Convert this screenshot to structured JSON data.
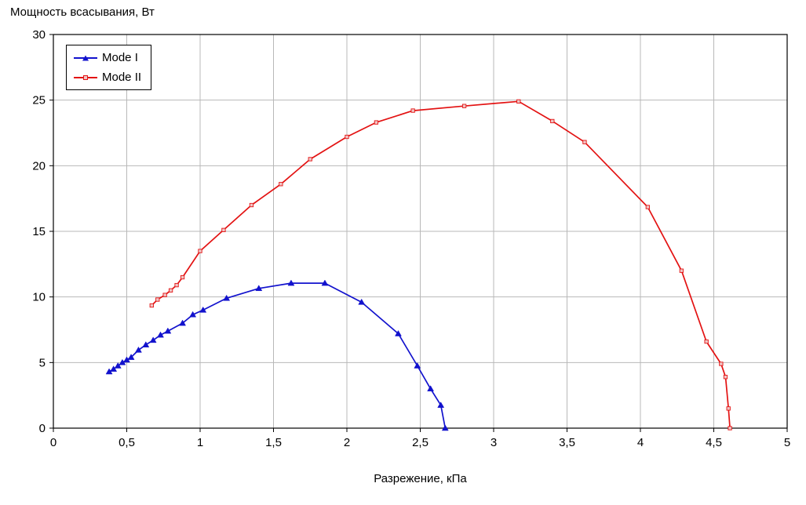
{
  "title": "Мощность всасывания, Вт",
  "chart_data": {
    "type": "line",
    "title": "Мощность всасывания, Вт",
    "xlabel": "Разрежение, кПа",
    "ylabel": "Мощность всасывания, Вт",
    "xlim": [
      0,
      5
    ],
    "ylim": [
      0,
      30
    ],
    "x_ticks": [
      0,
      0.5,
      1,
      1.5,
      2,
      2.5,
      3,
      3.5,
      4,
      4.5,
      5
    ],
    "x_tick_labels": [
      "0",
      "0,5",
      "1",
      "1,5",
      "2",
      "2,5",
      "3",
      "3,5",
      "4",
      "4,5",
      "5"
    ],
    "y_ticks": [
      0,
      5,
      10,
      15,
      20,
      25,
      30
    ],
    "y_tick_labels": [
      "0",
      "5",
      "10",
      "15",
      "20",
      "25",
      "30"
    ],
    "grid": true,
    "legend_position": "top-left",
    "colors": {
      "grid": "#b8b8b8",
      "axis": "#000000",
      "background": "#ffffff"
    },
    "series": [
      {
        "name": "Mode I",
        "color": "#1212cd",
        "marker": "triangle",
        "marker_fill": "#1212cd",
        "points": [
          [
            0.38,
            4.3
          ],
          [
            0.41,
            4.5
          ],
          [
            0.44,
            4.75
          ],
          [
            0.47,
            5.0
          ],
          [
            0.5,
            5.2
          ],
          [
            0.53,
            5.4
          ],
          [
            0.58,
            5.95
          ],
          [
            0.63,
            6.35
          ],
          [
            0.68,
            6.7
          ],
          [
            0.73,
            7.1
          ],
          [
            0.78,
            7.4
          ],
          [
            0.88,
            8.0
          ],
          [
            0.95,
            8.65
          ],
          [
            1.02,
            9.0
          ],
          [
            1.18,
            9.9
          ],
          [
            1.4,
            10.65
          ],
          [
            1.62,
            11.05
          ],
          [
            1.85,
            11.05
          ],
          [
            2.1,
            9.6
          ],
          [
            2.35,
            7.2
          ],
          [
            2.48,
            4.75
          ],
          [
            2.57,
            3.0
          ],
          [
            2.64,
            1.75
          ],
          [
            2.67,
            0.0
          ]
        ]
      },
      {
        "name": "Mode II",
        "color": "#e31212",
        "marker": "square",
        "marker_fill": "#f0c6c6",
        "points": [
          [
            0.67,
            9.35
          ],
          [
            0.71,
            9.8
          ],
          [
            0.76,
            10.15
          ],
          [
            0.8,
            10.5
          ],
          [
            0.84,
            10.9
          ],
          [
            0.88,
            11.5
          ],
          [
            1.0,
            13.5
          ],
          [
            1.16,
            15.1
          ],
          [
            1.35,
            17.0
          ],
          [
            1.55,
            18.6
          ],
          [
            1.75,
            20.5
          ],
          [
            2.0,
            22.2
          ],
          [
            2.2,
            23.3
          ],
          [
            2.45,
            24.2
          ],
          [
            2.8,
            24.55
          ],
          [
            3.17,
            24.9
          ],
          [
            3.4,
            23.4
          ],
          [
            3.62,
            21.8
          ],
          [
            4.05,
            16.85
          ],
          [
            4.28,
            12.0
          ],
          [
            4.45,
            6.6
          ],
          [
            4.55,
            4.9
          ],
          [
            4.58,
            3.9
          ],
          [
            4.6,
            1.5
          ],
          [
            4.61,
            0.0
          ]
        ]
      }
    ]
  }
}
